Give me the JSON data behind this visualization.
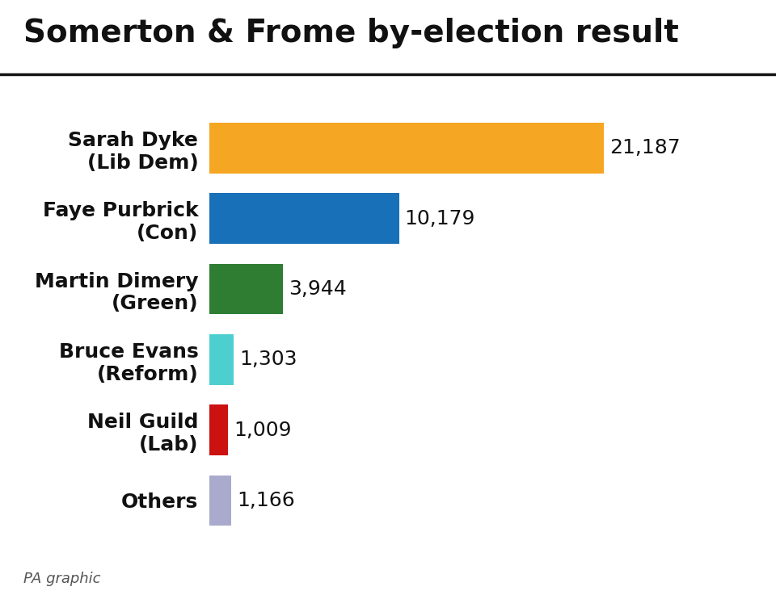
{
  "title": "Somerton & Frome by-election result",
  "title_fontsize": 28,
  "title_fontweight": "black",
  "footer": "PA graphic",
  "candidates": [
    "Sarah Dyke\n(Lib Dem)",
    "Faye Purbrick\n(Con)",
    "Martin Dimery\n(Green)",
    "Bruce Evans\n(Reform)",
    "Neil Guild\n(Lab)",
    "Others"
  ],
  "values": [
    21187,
    10179,
    3944,
    1303,
    1009,
    1166
  ],
  "labels": [
    "21,187",
    "10,179",
    "3,944",
    "1,303",
    "1,009",
    "1,166"
  ],
  "colors": [
    "#F5A623",
    "#1870B8",
    "#2E7D32",
    "#4ECFCF",
    "#CC1111",
    "#AAAACC"
  ],
  "background_color": "#ffffff",
  "bar_height": 0.72,
  "xlim": [
    0,
    25000
  ],
  "label_fontsize": 18,
  "value_label_fontsize": 18,
  "footer_fontsize": 13,
  "title_line_thickness": 2.5
}
